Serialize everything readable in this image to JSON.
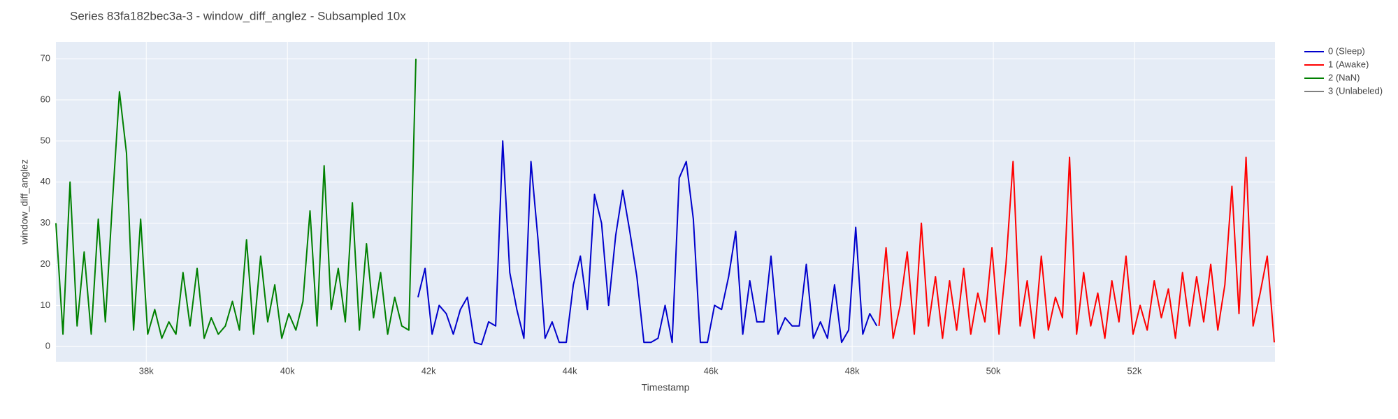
{
  "chart_data": {
    "type": "line",
    "title": "Series 83fa182bec3a-3 - window_diff_anglez - Subsampled 10x",
    "x_label": "Timestamp",
    "y_label": "window_diff_anglez",
    "xlim": [
      36720,
      53990
    ],
    "ylim": [
      -3.7,
      74.1
    ],
    "xticks": [
      {
        "value": 38000,
        "label": "38k"
      },
      {
        "value": 40000,
        "label": "40k"
      },
      {
        "value": 42000,
        "label": "42k"
      },
      {
        "value": 44000,
        "label": "44k"
      },
      {
        "value": 46000,
        "label": "46k"
      },
      {
        "value": 48000,
        "label": "48k"
      },
      {
        "value": 50000,
        "label": "50k"
      },
      {
        "value": 52000,
        "label": "52k"
      }
    ],
    "yticks": [
      0,
      10,
      20,
      30,
      40,
      50,
      60,
      70
    ],
    "grid": true,
    "legend": "outside-right",
    "series": [
      {
        "name": "0 (Sleep)",
        "color": "#0000cc",
        "x": [
          41850,
          41950,
          42050,
          42150,
          42250,
          42350,
          42450,
          42550,
          42650,
          42750,
          42850,
          42950,
          43050,
          43150,
          43250,
          43350,
          43450,
          43550,
          43650,
          43750,
          43850,
          43950,
          44050,
          44150,
          44250,
          44350,
          44450,
          44550,
          44650,
          44750,
          44850,
          44950,
          45050,
          45150,
          45250,
          45350,
          45450,
          45550,
          45650,
          45750,
          45850,
          45950,
          46050,
          46150,
          46250,
          46350,
          46450,
          46550,
          46650,
          46750,
          46850,
          46950,
          47050,
          47150,
          47250,
          47350,
          47450,
          47550,
          47650,
          47750,
          47850,
          47950,
          48050,
          48150,
          48250,
          48350
        ],
        "values": [
          12,
          19,
          3,
          10,
          8,
          3,
          9,
          12,
          1,
          0.5,
          6,
          5,
          50,
          18,
          9,
          2,
          45,
          26,
          2,
          6,
          1,
          1,
          15,
          22,
          9,
          37,
          30,
          10,
          27,
          38,
          28,
          17,
          1,
          1,
          2,
          10,
          1,
          41,
          45,
          31,
          1,
          1,
          10,
          9,
          17,
          28,
          3,
          16,
          6,
          6,
          22,
          3,
          7,
          5,
          5,
          20,
          2,
          6,
          2,
          15,
          1,
          4,
          29,
          3,
          8,
          5
        ]
      },
      {
        "name": "1 (Awake)",
        "color": "#ff0000",
        "x": [
          48380,
          48480,
          48580,
          48680,
          48780,
          48880,
          48980,
          49080,
          49180,
          49280,
          49380,
          49480,
          49580,
          49680,
          49780,
          49880,
          49980,
          50080,
          50180,
          50280,
          50380,
          50480,
          50580,
          50680,
          50780,
          50880,
          50980,
          51080,
          51180,
          51280,
          51380,
          51480,
          51580,
          51680,
          51780,
          51880,
          51980,
          52080,
          52180,
          52280,
          52380,
          52480,
          52580,
          52680,
          52780,
          52880,
          52980,
          53080,
          53180,
          53280,
          53380,
          53480,
          53580,
          53680,
          53780,
          53880,
          53980
        ],
        "values": [
          5,
          24,
          2,
          10,
          23,
          3,
          30,
          5,
          17,
          2,
          16,
          4,
          19,
          3,
          13,
          6,
          24,
          3,
          20,
          45,
          5,
          16,
          2,
          22,
          4,
          12,
          7,
          46,
          3,
          18,
          5,
          13,
          2,
          16,
          6,
          22,
          3,
          10,
          4,
          16,
          7,
          14,
          2,
          18,
          5,
          17,
          6,
          20,
          4,
          15,
          39,
          8,
          46,
          5,
          13,
          22,
          1
        ]
      },
      {
        "name": "2 (NaN)",
        "color": "#008000",
        "x": [
          36720,
          36820,
          36920,
          37020,
          37120,
          37220,
          37320,
          37420,
          37520,
          37620,
          37720,
          37820,
          37920,
          38020,
          38120,
          38220,
          38320,
          38420,
          38520,
          38620,
          38720,
          38820,
          38920,
          39020,
          39120,
          39220,
          39320,
          39420,
          39520,
          39620,
          39720,
          39820,
          39920,
          40020,
          40120,
          40220,
          40320,
          40420,
          40520,
          40620,
          40720,
          40820,
          40920,
          41020,
          41120,
          41220,
          41320,
          41420,
          41520,
          41620,
          41720,
          41820
        ],
        "values": [
          30,
          3,
          40,
          5,
          23,
          3,
          31,
          6,
          35,
          62,
          47,
          4,
          31,
          3,
          9,
          2,
          6,
          3,
          18,
          5,
          19,
          2,
          7,
          3,
          5,
          11,
          4,
          26,
          3,
          22,
          6,
          15,
          2,
          8,
          4,
          11,
          33,
          5,
          44,
          9,
          19,
          6,
          35,
          4,
          25,
          7,
          18,
          3,
          12,
          5,
          4,
          70
        ]
      },
      {
        "name": "3 (Unlabeled)",
        "color": "#808080",
        "x": [],
        "values": []
      }
    ]
  }
}
